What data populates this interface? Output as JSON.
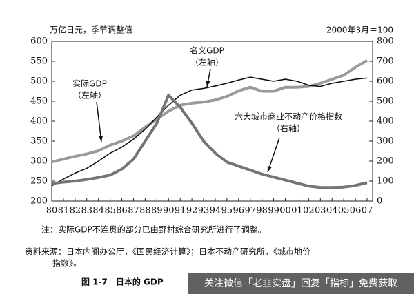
{
  "chart_data": {
    "type": "line",
    "title": "图 1-7　日本的 GDP",
    "y_label": "万亿日元，季节调整值",
    "y2_label": "2000年3月＝100",
    "categories": [
      "80",
      "81",
      "82",
      "83",
      "84",
      "85",
      "86",
      "87",
      "88",
      "89",
      "90",
      "91",
      "92",
      "93",
      "94",
      "95",
      "96",
      "97",
      "98",
      "99",
      "00",
      "01",
      "02",
      "03",
      "04",
      "05",
      "06",
      "07"
    ],
    "series": [
      {
        "name": "实际GDP",
        "axis_note": "（左轴）",
        "color": "#9a9a9a",
        "width": 4,
        "values": [
          298,
          305,
          312,
          318,
          326,
          340,
          350,
          363,
          385,
          405,
          425,
          440,
          445,
          448,
          453,
          462,
          476,
          485,
          475,
          475,
          485,
          485,
          487,
          495,
          505,
          515,
          535,
          552
        ]
      },
      {
        "name": "名义GDP",
        "axis_note": "（左轴）",
        "color": "#111111",
        "width": 1.6,
        "values": [
          238,
          255,
          270,
          282,
          300,
          320,
          335,
          355,
          380,
          410,
          440,
          465,
          478,
          482,
          488,
          495,
          503,
          510,
          505,
          500,
          505,
          500,
          490,
          487,
          495,
          500,
          505,
          508
        ]
      },
      {
        "name": "六大城市商业不动产价格指数",
        "axis_note": "（右轴）",
        "axis": "y2",
        "color": "#747474",
        "width": 4,
        "values": [
          88,
          95,
          100,
          108,
          118,
          130,
          160,
          210,
          300,
          390,
          530,
          470,
          390,
          300,
          240,
          195,
          175,
          155,
          135,
          120,
          105,
          90,
          75,
          68,
          68,
          70,
          78,
          92
        ]
      }
    ],
    "ylim": [
      200,
      600
    ],
    "yticks": [
      200,
      250,
      300,
      350,
      400,
      450,
      500,
      550,
      600
    ],
    "y2lim": [
      0,
      800
    ],
    "y2ticks": [
      0,
      100,
      200,
      300,
      400,
      500,
      600,
      700,
      800
    ],
    "notes": [
      "注：实际GDP不连贯的部分已由野村综合研究所进行了调整。",
      "资料来源：日本内阁办公厅，《国民经济计算》；日本不动产研究所，《城市地价",
      "指数》。"
    ],
    "watermark": "关注微信「老韭实盘」回复「指标」免费获取"
  }
}
